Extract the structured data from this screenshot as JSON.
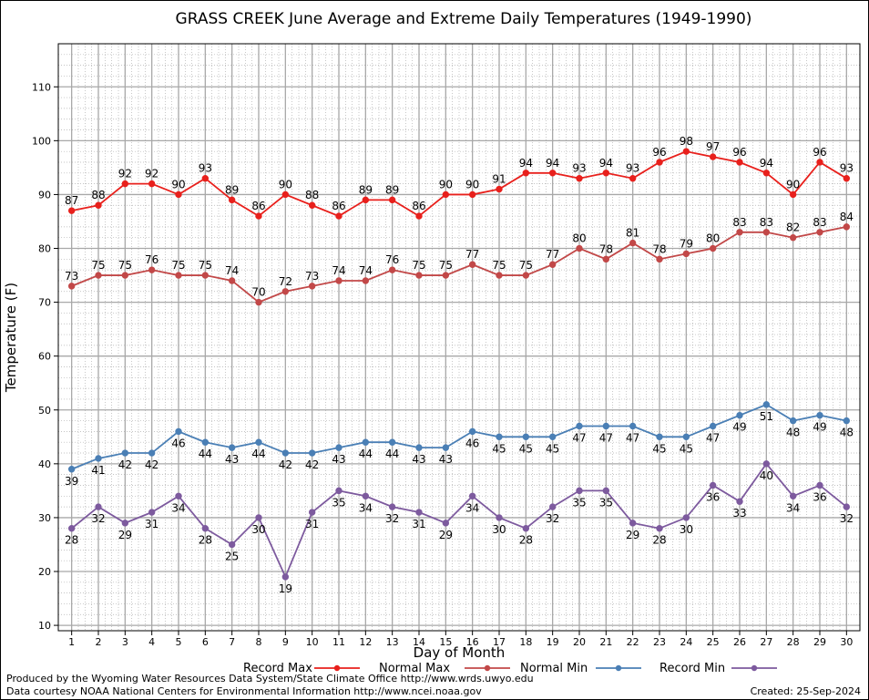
{
  "chart_data": {
    "type": "line",
    "title": "GRASS CREEK June Average and Extreme Daily Temperatures (1949-1990)",
    "xlabel": "Day of Month",
    "ylabel": "Temperature (F)",
    "xlim": [
      0.5,
      30.5
    ],
    "ylim": [
      9,
      118
    ],
    "yticks": [
      10,
      20,
      30,
      40,
      50,
      60,
      70,
      80,
      90,
      100,
      110
    ],
    "x": [
      1,
      2,
      3,
      4,
      5,
      6,
      7,
      8,
      9,
      10,
      11,
      12,
      13,
      14,
      15,
      16,
      17,
      18,
      19,
      20,
      21,
      22,
      23,
      24,
      25,
      26,
      27,
      28,
      29,
      30
    ],
    "grid": true,
    "legend_position": "bottom",
    "series": [
      {
        "name": "Record Max",
        "color": "#e8201c",
        "values": [
          87,
          88,
          92,
          92,
          90,
          93,
          89,
          86,
          90,
          88,
          86,
          89,
          89,
          86,
          90,
          90,
          91,
          94,
          94,
          93,
          94,
          93,
          96,
          98,
          97,
          96,
          94,
          90,
          96,
          93
        ]
      },
      {
        "name": "Normal Max",
        "color": "#c24848",
        "values": [
          73,
          75,
          75,
          76,
          75,
          75,
          74,
          70,
          72,
          73,
          74,
          74,
          76,
          75,
          75,
          77,
          75,
          75,
          77,
          80,
          78,
          81,
          78,
          79,
          80,
          83,
          83,
          82,
          83,
          84
        ]
      },
      {
        "name": "Normal Min",
        "color": "#4a7fb5",
        "values": [
          39,
          41,
          42,
          42,
          46,
          44,
          43,
          44,
          42,
          42,
          43,
          44,
          44,
          43,
          43,
          46,
          45,
          45,
          45,
          47,
          47,
          47,
          45,
          45,
          47,
          49,
          51,
          48,
          49,
          48
        ]
      },
      {
        "name": "Record Min",
        "color": "#7d5a9e",
        "values": [
          28,
          32,
          29,
          31,
          34,
          28,
          25,
          30,
          19,
          31,
          35,
          34,
          32,
          31,
          29,
          34,
          30,
          28,
          32,
          35,
          35,
          29,
          28,
          30,
          36,
          33,
          40,
          34,
          36,
          32
        ]
      }
    ]
  },
  "footer": {
    "produced_by": "Produced by the Wyoming Water Resources Data System/State Climate Office http://www.wrds.uwyo.edu",
    "courtesy": "Data courtesy NOAA National Centers for Environmental Information http://www.ncei.noaa.gov",
    "created": "Created: 25-Sep-2024"
  }
}
